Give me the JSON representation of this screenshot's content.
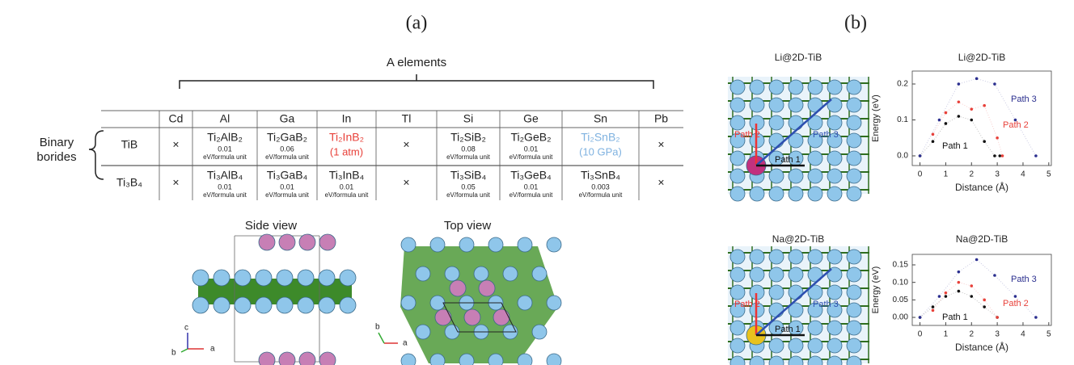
{
  "figure": {
    "panel_a_label": "(a)",
    "panel_b_label": "(b)"
  },
  "table": {
    "group_label": "A elements",
    "row_group_label": [
      "Binary",
      "borides"
    ],
    "columns": [
      "Cd",
      "Al",
      "Ga",
      "In",
      "Tl",
      "Si",
      "Ge",
      "Sn",
      "Pb"
    ],
    "rows": [
      {
        "label": "TiB",
        "cells": [
          "×",
          {
            "formula": "Ti₂AlB₂",
            "energy": "0.01",
            "unit": "eV/formula unit"
          },
          {
            "formula": "Ti₂GaB₂",
            "energy": "0.06",
            "unit": "eV/formula unit"
          },
          {
            "formula": "Ti₂InB₂",
            "note": "(1 atm)",
            "color": "#e8413a"
          },
          "×",
          {
            "formula": "Ti₂SiB₂",
            "energy": "0.08",
            "unit": "eV/formula unit"
          },
          {
            "formula": "Ti₂GeB₂",
            "energy": "0.01",
            "unit": "eV/formula unit"
          },
          {
            "formula": "Ti₂SnB₂",
            "note": "(10 GPa)",
            "color": "#7fb2e0"
          },
          "×"
        ]
      },
      {
        "label": "Ti₃B₄",
        "cells": [
          "×",
          {
            "formula": "Ti₃AlB₄",
            "energy": "0.01",
            "unit": "eV/formula unit"
          },
          {
            "formula": "Ti₃GaB₄",
            "energy": "0.01",
            "unit": "eV/formula unit"
          },
          {
            "formula": "Ti₃InB₄",
            "energy": "0.01",
            "unit": "eV/formula unit"
          },
          "×",
          {
            "formula": "Ti₃SiB₄",
            "energy": "0.05",
            "unit": "eV/formula unit"
          },
          {
            "formula": "Ti₃GeB₄",
            "energy": "0.01",
            "unit": "eV/formula unit"
          },
          {
            "formula": "Ti₃SnB₄",
            "energy": "0.003",
            "unit": "eV/formula unit"
          },
          "×"
        ]
      }
    ]
  },
  "structures": {
    "side_view": "Side view",
    "top_view": "Top view",
    "axis_a": "a",
    "axis_b": "b",
    "axis_c": "c",
    "li_title": "Li@2D-TiB",
    "na_title": "Na@2D-TiB",
    "path_labels": [
      "Path 1",
      "Path 2",
      "Path 3"
    ]
  },
  "chart_data": [
    {
      "type": "scatter",
      "title": "Li@2D-TiB",
      "x_label": "Distance (Å)",
      "y_label": "Energy (eV)",
      "xlim": [
        -0.3,
        5.1
      ],
      "xticks": [
        0,
        1,
        2,
        3,
        4,
        5
      ],
      "ylim": [
        -0.027,
        0.236
      ],
      "yticks": [
        {
          "value": 0,
          "label": "0.0"
        },
        0.1,
        0.2
      ],
      "series": [
        {
          "name": "Path 1",
          "color": "#111111",
          "x": [
            0,
            0.5,
            1,
            1.5,
            2,
            2.5,
            2.9,
            3.1
          ],
          "values": [
            0,
            0.04,
            0.09,
            0.11,
            0.1,
            0.04,
            0,
            0
          ]
        },
        {
          "name": "Path 2",
          "color": "#e8413a",
          "x": [
            0.5,
            1,
            1.5,
            2,
            2.5,
            3,
            3.2
          ],
          "values": [
            0.06,
            0.12,
            0.15,
            0.13,
            0.14,
            0.05,
            0
          ]
        },
        {
          "name": "Path 3",
          "color": "#2b2f8f",
          "x": [
            0,
            0.75,
            1.5,
            2.2,
            2.9,
            3.7,
            4.5
          ],
          "values": [
            0,
            0.1,
            0.2,
            0.215,
            0.2,
            0.1,
            0
          ]
        }
      ]
    },
    {
      "type": "scatter",
      "title": "Na@2D-TiB",
      "x_label": "Distance (Å)",
      "y_label": "Energy (eV)",
      "xlim": [
        -0.3,
        5.1
      ],
      "xticks": [
        0,
        1,
        2,
        3,
        4,
        5
      ],
      "ylim": [
        -0.023,
        0.18
      ],
      "yticks": [
        {
          "value": 0,
          "label": "0.00"
        },
        0.05,
        {
          "value": 0.1,
          "label": "0.10"
        },
        0.15
      ],
      "series": [
        {
          "name": "Path 1",
          "color": "#111111",
          "x": [
            0,
            0.5,
            1,
            1.5,
            2,
            2.5,
            3
          ],
          "values": [
            0,
            0.03,
            0.06,
            0.075,
            0.06,
            0.03,
            0
          ]
        },
        {
          "name": "Path 2",
          "color": "#e8413a",
          "x": [
            0.5,
            1,
            1.5,
            2,
            2.5,
            3
          ],
          "values": [
            0.02,
            0.07,
            0.1,
            0.09,
            0.05,
            0
          ]
        },
        {
          "name": "Path 3",
          "color": "#2b2f8f",
          "x": [
            0,
            0.75,
            1.5,
            2.2,
            2.9,
            3.7,
            4.5
          ],
          "values": [
            0,
            0.06,
            0.13,
            0.165,
            0.12,
            0.06,
            0
          ]
        }
      ]
    }
  ]
}
